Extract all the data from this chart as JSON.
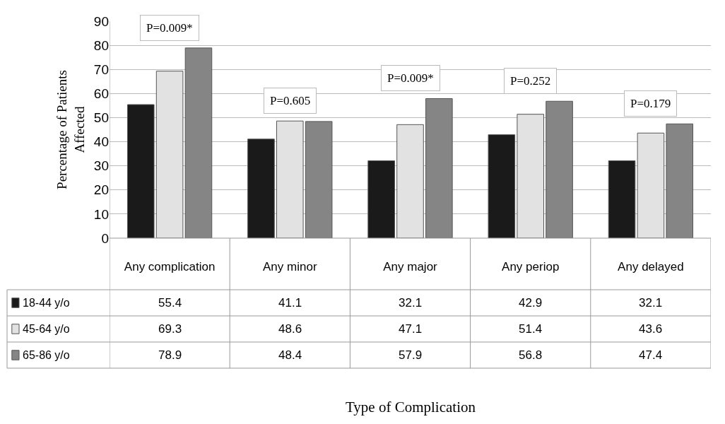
{
  "chart_data": {
    "type": "bar",
    "ylabel": "Percentage of Patients Affected",
    "categories": [
      "Any complication",
      "Any minor",
      "Any major",
      "Any periop",
      "Any delayed"
    ],
    "series": [
      {
        "name": "18-44 y/o",
        "color": "#1a1a1a",
        "values": [
          55.4,
          41.1,
          32.1,
          42.9,
          32.1
        ]
      },
      {
        "name": "45-64 y/o",
        "color": "#e2e2e2",
        "values": [
          69.3,
          48.6,
          47.1,
          51.4,
          43.6
        ]
      },
      {
        "name": "65-86 y/o",
        "color": "#858585",
        "values": [
          78.9,
          48.4,
          57.9,
          56.8,
          47.4
        ]
      }
    ],
    "ylim": [
      0,
      90
    ],
    "yticks": [
      0,
      10,
      20,
      30,
      40,
      50,
      60,
      70,
      80,
      90
    ],
    "grid": "y",
    "legend": "bottom left",
    "data_labels": true,
    "annotations": [
      "P=0.009*",
      "P=0.605",
      "P=0.009*",
      "P=0.252",
      "P=0.179",
      "Type of Complication"
    ]
  }
}
